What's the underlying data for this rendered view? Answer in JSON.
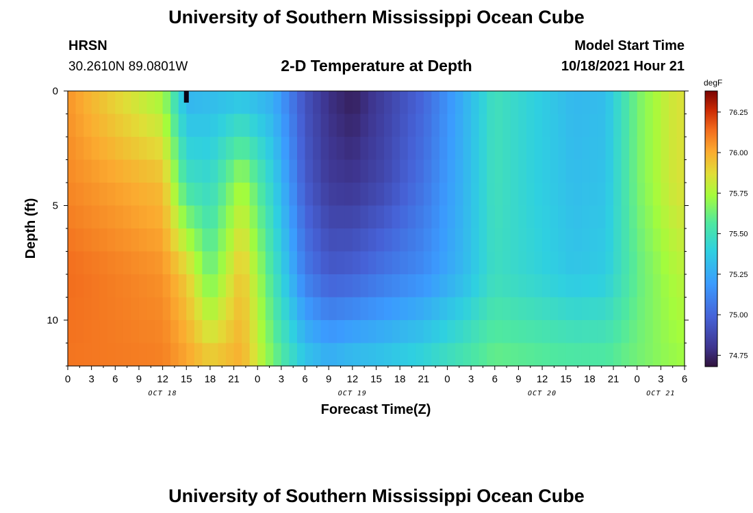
{
  "header": {
    "title": "University of Southern Mississippi Ocean Cube",
    "footer_title": "University of Southern Mississippi Ocean Cube",
    "station": "HRSN",
    "coords": "30.2610N  89.0801W",
    "subtitle": "2-D Temperature at Depth",
    "model_label": "Model Start Time",
    "model_time": "10/18/2021 Hour 21"
  },
  "chart_data": {
    "type": "heatmap",
    "title": "2-D Temperature at Depth",
    "xlabel": "Forecast Time(Z)",
    "ylabel": "Depth (ft)",
    "x_ticks": [
      "0",
      "3",
      "6",
      "9",
      "12",
      "15",
      "18",
      "21",
      "0",
      "3",
      "6",
      "9",
      "12",
      "15",
      "18",
      "21",
      "0",
      "3",
      "6",
      "9",
      "12",
      "15",
      "18",
      "21",
      "0",
      "3",
      "6"
    ],
    "date_labels": [
      {
        "label": "OCT 18",
        "hour": 12
      },
      {
        "label": "OCT 19",
        "hour": 36
      },
      {
        "label": "OCT 20",
        "hour": 60
      },
      {
        "label": "OCT 21",
        "hour": 75
      }
    ],
    "y_ticks": [
      "0",
      "5",
      "10"
    ],
    "y_tick_values": [
      0,
      5,
      10
    ],
    "ylim": [
      0,
      12
    ],
    "xlim": [
      0,
      78
    ],
    "colorbar": {
      "unit": "degF",
      "ticks": [
        "76.25",
        "76.00",
        "75.75",
        "75.50",
        "75.25",
        "75.00",
        "74.75"
      ],
      "tick_values": [
        76.25,
        76.0,
        75.75,
        75.5,
        75.25,
        75.0,
        74.75
      ],
      "range": [
        74.68,
        76.38
      ]
    },
    "time_hours": [
      0,
      12,
      15,
      18,
      22,
      26,
      30,
      33,
      36,
      40,
      45,
      50,
      54,
      59,
      64,
      68,
      72,
      76,
      78
    ],
    "depth_ft": [
      0,
      4,
      8,
      12
    ],
    "temperature": [
      [
        76.05,
        75.72,
        75.27,
        75.3,
        75.32,
        75.25,
        74.92,
        74.78,
        74.72,
        74.84,
        75.0,
        75.26,
        75.5,
        75.4,
        75.3,
        75.32,
        75.64,
        75.82,
        75.86
      ],
      [
        76.08,
        75.96,
        75.5,
        75.45,
        75.75,
        75.4,
        74.96,
        74.82,
        74.8,
        74.88,
        75.05,
        75.28,
        75.5,
        75.4,
        75.32,
        75.34,
        75.64,
        75.82,
        75.86
      ],
      [
        76.14,
        76.06,
        75.92,
        75.62,
        75.95,
        75.52,
        75.08,
        74.96,
        74.98,
        75.06,
        75.14,
        75.3,
        75.48,
        75.42,
        75.35,
        75.38,
        75.6,
        75.74,
        75.78
      ],
      [
        76.12,
        76.1,
        76.03,
        75.95,
        76.0,
        75.65,
        75.38,
        75.3,
        75.35,
        75.38,
        75.45,
        75.55,
        75.62,
        75.6,
        75.58,
        75.58,
        75.64,
        75.7,
        75.72
      ]
    ],
    "marker": {
      "hour": 15,
      "depth": 0.3,
      "label": "max-cold-marker"
    }
  }
}
